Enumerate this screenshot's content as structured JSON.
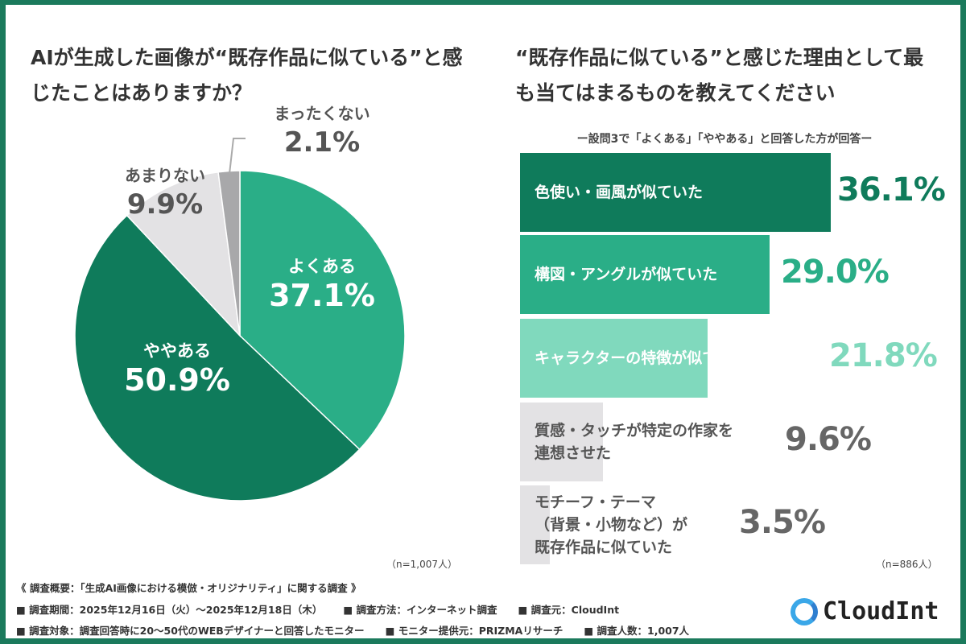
{
  "colors": {
    "frame": "#1b7a5c",
    "dark_green": "#0f7b5b",
    "mid_green": "#2aae87",
    "light_green": "#80d9bd",
    "light_gray": "#e3e2e4",
    "dark_gray": "#a8a8aa"
  },
  "chart_data": [
    {
      "type": "pie",
      "title": "AIが生成した画像が“既存作品に似ている”と感じたことはありますか？",
      "slices": [
        {
          "label": "よくある",
          "value": 37.1,
          "display": "37.1%",
          "color": "#2aae87"
        },
        {
          "label": "ややある",
          "value": 50.9,
          "display": "50.9%",
          "color": "#0f7b5b"
        },
        {
          "label": "あまりない",
          "value": 9.9,
          "display": "9.9%",
          "color": "#e3e2e4"
        },
        {
          "label": "まったくない",
          "value": 2.1,
          "display": "2.1%",
          "color": "#a8a8aa"
        }
      ],
      "start": "top",
      "direction": "clockwise",
      "n": "（n=1,007人）"
    },
    {
      "type": "bar",
      "orientation": "horizontal",
      "title": "“既存作品に似ている”と感じた理由として最も当てはまるものを教えてください",
      "subtitle": "ー設問3で「よくある」「ややある」と回答した方が回答ー",
      "categories": [
        "色使い・画風が似ていた",
        "構図・アングルが似ていた",
        "キャラクターの特徴が似ていた",
        "質感・タッチが特定の作家を\n連想させた",
        "モチーフ・テーマ\n（背景・小物など）が\n既存作品に似ていた"
      ],
      "values": [
        36.1,
        29.0,
        21.8,
        9.6,
        3.5
      ],
      "display": [
        "36.1%",
        "29.0%",
        "21.8%",
        "9.6%",
        "3.5%"
      ],
      "colors": [
        "#0f7b5b",
        "#2aae87",
        "#80d9bd",
        "#e3e2e4",
        "#e3e2e4"
      ],
      "n": "（n=886人）"
    }
  ],
  "footer": {
    "overview": "《 調査概要：「生成AI画像における模倣・オリジナリティ」に関する調査 》",
    "line2": [
      "■ 調査期間：2025年12月16日（火）〜2025年12月18日（木）",
      "■ 調査方法：インターネット調査",
      "■ 調査元：CloudInt"
    ],
    "line3": [
      "■ 調査対象：調査回答時に20〜50代のWEBデザイナーと回答したモニター",
      "■ モニター提供元：PRIZMAリサーチ",
      "■ 調査人数：1,007人"
    ]
  },
  "logo": {
    "text": "CloudInt"
  }
}
